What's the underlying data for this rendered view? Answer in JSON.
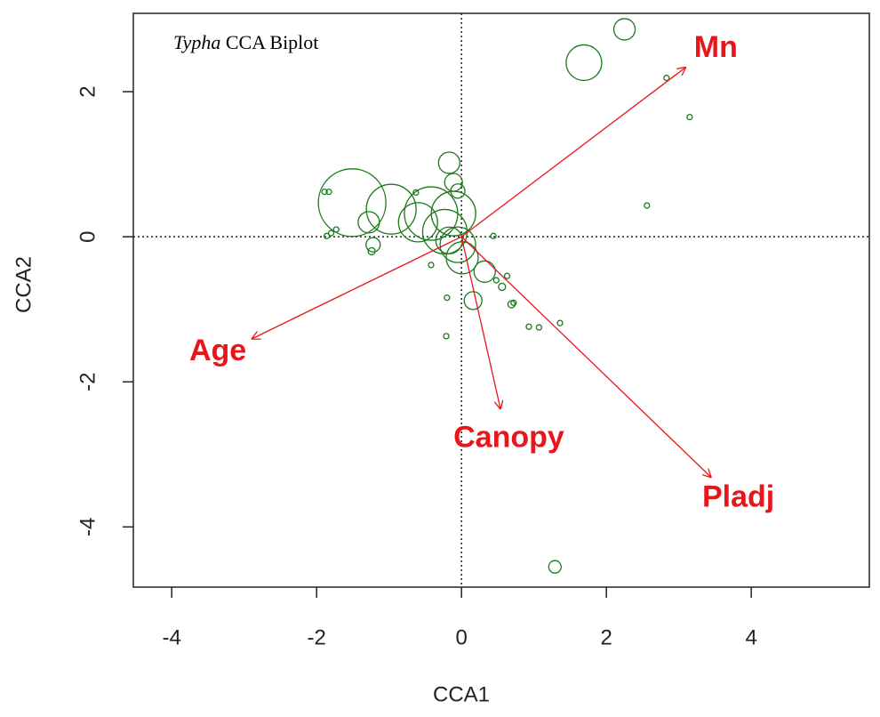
{
  "chart_data": {
    "type": "biplot",
    "title_parts": [
      "Typha",
      "CCA Biplot"
    ],
    "xlabel": "CCA1",
    "ylabel": "CCA2",
    "xlim": [
      -4.53,
      5.63
    ],
    "ylim": [
      -4.83,
      3.08
    ],
    "xticks": [
      -4,
      -2,
      0,
      2,
      4
    ],
    "yticks": [
      -4,
      -2,
      0,
      2
    ],
    "point_color": "#1a7a1a",
    "x": [
      2.25,
      1.69,
      2.83,
      3.15,
      2.56,
      -0.17,
      -0.11,
      -0.05,
      -1.51,
      -0.97,
      -0.42,
      -0.11,
      -0.6,
      -0.23,
      -0.05,
      0.01,
      -0.17,
      -1.28,
      -1.22,
      -1.89,
      -1.83,
      -1.86,
      -1.8,
      -1.73,
      -1.24,
      0.32,
      0.16,
      0.44,
      0.48,
      0.63,
      0.56,
      0.69,
      0.72,
      0.93,
      1.07,
      1.36,
      -0.21,
      1.29,
      -0.42,
      -0.63,
      -0.2
    ],
    "y": [
      2.86,
      2.4,
      2.19,
      1.65,
      0.43,
      1.02,
      0.75,
      0.63,
      0.47,
      0.38,
      0.32,
      0.32,
      0.2,
      0.07,
      -0.11,
      -0.29,
      -0.05,
      0.2,
      -0.11,
      0.62,
      0.62,
      0.01,
      0.05,
      0.1,
      -0.2,
      -0.48,
      -0.88,
      0.01,
      -0.6,
      -0.54,
      -0.69,
      -0.93,
      -0.91,
      -1.24,
      -1.25,
      -1.19,
      -1.37,
      -4.55,
      -0.39,
      0.61,
      -0.84
    ],
    "sizes": [
      12,
      20,
      3,
      3,
      3,
      12,
      10,
      8,
      38,
      28,
      30,
      25,
      22,
      25,
      20,
      18,
      15,
      12,
      8,
      3,
      3,
      3,
      3,
      3,
      4,
      12,
      10,
      3,
      3,
      3,
      4,
      4,
      3,
      3,
      3,
      3,
      3,
      7,
      3,
      3,
      3
    ],
    "arrow_color": "#e8151b",
    "arrows": [
      {
        "name": "Mn",
        "x": 3.1,
        "y": 2.34
      },
      {
        "name": "Age",
        "x": -2.9,
        "y": -1.41
      },
      {
        "name": "Canopy",
        "x": 0.54,
        "y": -2.38
      },
      {
        "name": "Pladj",
        "x": 3.45,
        "y": -3.32
      }
    ]
  }
}
